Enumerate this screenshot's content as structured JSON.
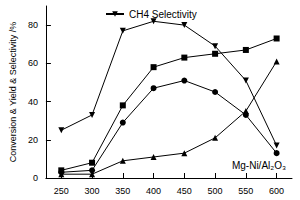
{
  "chart_data": {
    "type": "line",
    "y_label": "Conversion & Yield & Selectivity /%",
    "annotation": "Mg-Ni/Al₂O₃",
    "x": [
      250,
      300,
      350,
      400,
      450,
      500,
      550,
      600
    ],
    "xlim": [
      225,
      625
    ],
    "xticks": [
      250,
      300,
      350,
      400,
      450,
      500,
      550,
      600
    ],
    "ylim": [
      0,
      90
    ],
    "yticks": [
      0,
      20,
      40,
      60,
      80
    ],
    "grid": false,
    "legend": "top",
    "series": [
      {
        "name": "CH4 Selectivity",
        "color": "#000000",
        "marker": "triangle_down",
        "values": [
          25,
          33,
          77,
          82,
          80,
          69,
          51,
          17
        ]
      },
      {
        "color": "#000000",
        "marker": "square",
        "values": [
          4,
          8,
          38,
          58,
          63,
          65,
          67,
          73
        ]
      },
      {
        "color": "#000000",
        "marker": "circle",
        "values": [
          3,
          4,
          29,
          47,
          51,
          45,
          33,
          13
        ]
      },
      {
        "color": "#000000",
        "marker": "triangle",
        "values": [
          2,
          2,
          9,
          11,
          13,
          21,
          35,
          61
        ]
      }
    ]
  }
}
